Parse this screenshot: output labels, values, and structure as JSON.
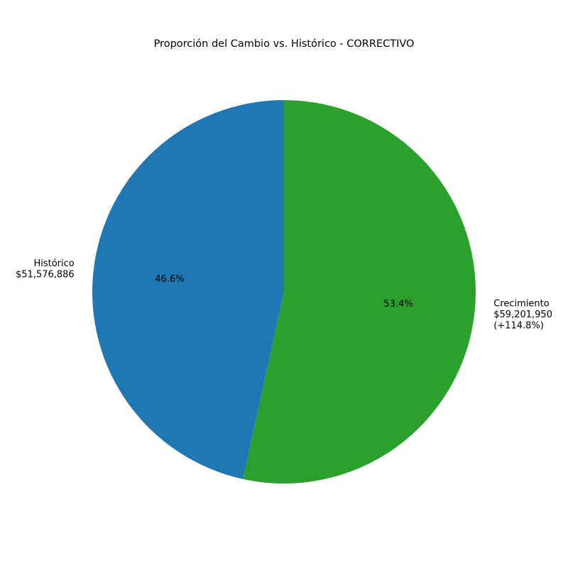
{
  "chart_data": {
    "type": "pie",
    "title": "Proporción del Cambio vs. Histórico - CORRECTIVO",
    "slices": [
      {
        "key": "historico",
        "value": 51576886,
        "percent_label": "46.6%",
        "label_lines": [
          "Histórico",
          "$51,576,886"
        ],
        "color": "#1f77b4"
      },
      {
        "key": "crecimiento",
        "value": 59201950,
        "percent_label": "53.4%",
        "label_lines": [
          "Crecimiento",
          "$59,201,950",
          "(+114.8%)"
        ],
        "color": "#2ca02c"
      }
    ],
    "start_angle_deg": 90,
    "direction": "counterclockwise",
    "legend": "none"
  }
}
